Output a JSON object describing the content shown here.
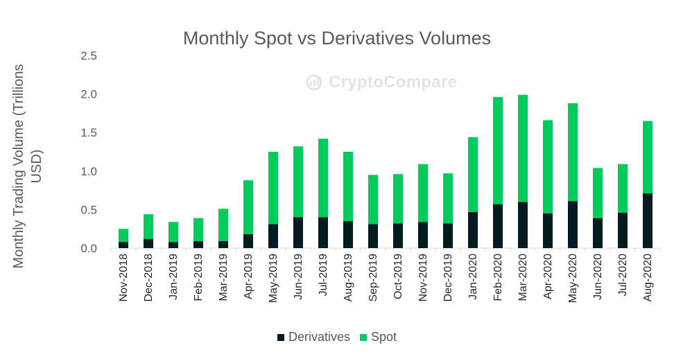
{
  "chart_data": {
    "type": "bar",
    "stacked": true,
    "title": "Monthly Spot vs Derivatives Volumes",
    "ylabel": "Monthly Trading Volume (Trillions USD)",
    "xlabel": "",
    "ylim": [
      0,
      2.5
    ],
    "yticks": [
      "0.0",
      "0.5",
      "1.0",
      "1.5",
      "2.0",
      "2.5"
    ],
    "grid": false,
    "legend_position": "bottom",
    "watermark": "CryptoCompare",
    "categories": [
      "Nov-2018",
      "Dec-2018",
      "Jan-2019",
      "Feb-2019",
      "Mar-2019",
      "Apr-2019",
      "May-2019",
      "Jun-2019",
      "Jul-2019",
      "Aug-2019",
      "Sep-2019",
      "Oct-2019",
      "Nov-2019",
      "Dec-2019",
      "Jan-2020",
      "Feb-2020",
      "Mar-2020",
      "Apr-2020",
      "May-2020",
      "Jun-2020",
      "Jul-2020",
      "Aug-2020"
    ],
    "series": [
      {
        "name": "Derivatives",
        "color": "#021c22",
        "values": [
          0.08,
          0.12,
          0.08,
          0.09,
          0.09,
          0.18,
          0.31,
          0.4,
          0.4,
          0.35,
          0.31,
          0.32,
          0.34,
          0.32,
          0.47,
          0.57,
          0.6,
          0.45,
          0.61,
          0.39,
          0.46,
          0.71
        ]
      },
      {
        "name": "Spot",
        "color": "#00cc5c",
        "values": [
          0.17,
          0.32,
          0.26,
          0.3,
          0.42,
          0.7,
          0.94,
          0.92,
          1.02,
          0.9,
          0.64,
          0.64,
          0.75,
          0.65,
          0.97,
          1.39,
          1.39,
          1.21,
          1.27,
          0.65,
          0.63,
          0.94
        ]
      }
    ]
  }
}
